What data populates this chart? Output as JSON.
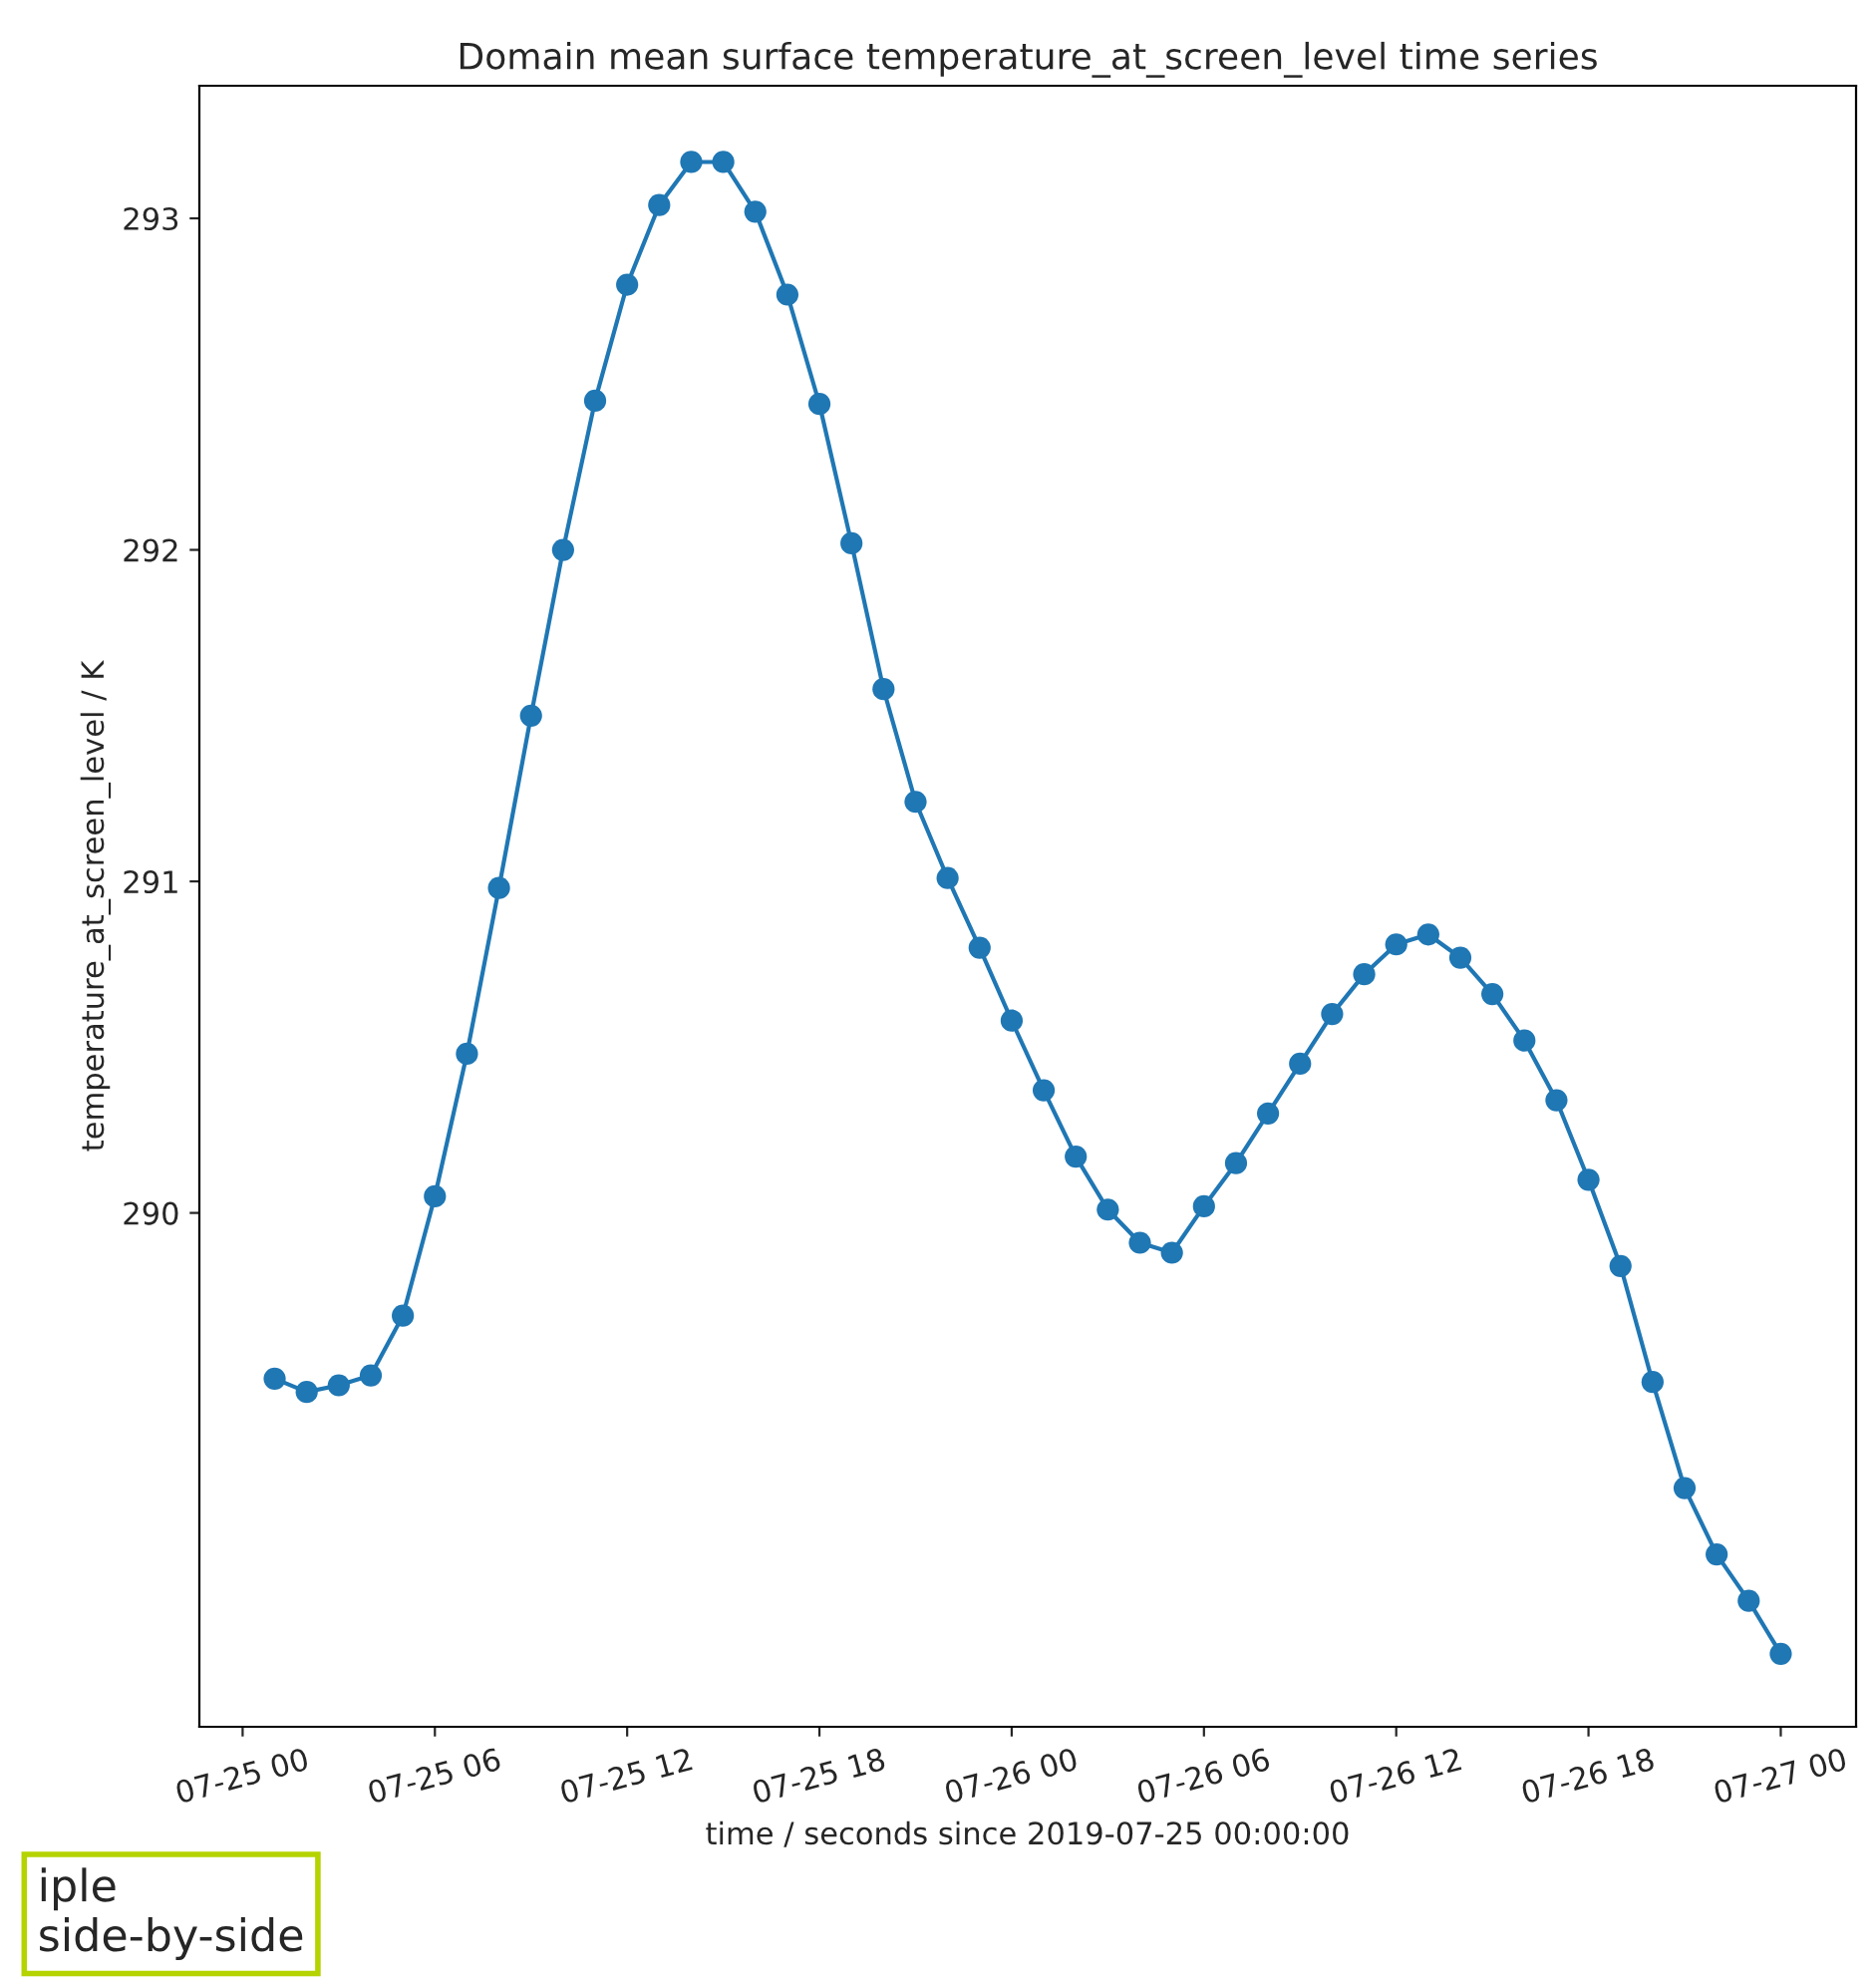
{
  "chart_data": {
    "type": "line",
    "title": "Domain mean surface temperature_at_screen_level time series",
    "xlabel": "time / seconds since 2019-07-25 00:00:00",
    "ylabel": "temperature_at_screen_level / K",
    "x": [
      "2019-07-25T01:00",
      "2019-07-25T02:00",
      "2019-07-25T03:00",
      "2019-07-25T04:00",
      "2019-07-25T05:00",
      "2019-07-25T06:00",
      "2019-07-25T07:00",
      "2019-07-25T08:00",
      "2019-07-25T09:00",
      "2019-07-25T10:00",
      "2019-07-25T11:00",
      "2019-07-25T12:00",
      "2019-07-25T13:00",
      "2019-07-25T14:00",
      "2019-07-25T15:00",
      "2019-07-25T16:00",
      "2019-07-25T17:00",
      "2019-07-25T18:00",
      "2019-07-25T19:00",
      "2019-07-25T20:00",
      "2019-07-25T21:00",
      "2019-07-25T22:00",
      "2019-07-25T23:00",
      "2019-07-26T00:00",
      "2019-07-26T01:00",
      "2019-07-26T02:00",
      "2019-07-26T03:00",
      "2019-07-26T04:00",
      "2019-07-26T05:00",
      "2019-07-26T06:00",
      "2019-07-26T07:00",
      "2019-07-26T08:00",
      "2019-07-26T09:00",
      "2019-07-26T10:00",
      "2019-07-26T11:00",
      "2019-07-26T12:00",
      "2019-07-26T13:00",
      "2019-07-26T14:00",
      "2019-07-26T15:00",
      "2019-07-26T16:00",
      "2019-07-26T17:00",
      "2019-07-26T18:00",
      "2019-07-26T19:00",
      "2019-07-26T20:00",
      "2019-07-26T21:00",
      "2019-07-26T22:00",
      "2019-07-26T23:00",
      "2019-07-27T00:00"
    ],
    "series": [
      {
        "color": "#1f77b4",
        "values": [
          289.5,
          289.46,
          289.48,
          289.51,
          289.69,
          290.05,
          290.48,
          290.98,
          291.5,
          292.0,
          292.45,
          292.8,
          293.04,
          293.17,
          293.17,
          293.02,
          292.77,
          292.44,
          292.02,
          291.58,
          291.24,
          291.01,
          290.8,
          290.58,
          290.37,
          290.17,
          290.01,
          289.91,
          289.88,
          290.02,
          290.15,
          290.3,
          290.45,
          290.6,
          290.72,
          290.81,
          290.84,
          290.77,
          290.66,
          290.52,
          290.34,
          290.1,
          289.84,
          289.49,
          289.17,
          288.97,
          288.83,
          288.67
        ]
      }
    ],
    "xlim": [
      "2019-07-24T22:39",
      "2019-07-27T02:21"
    ],
    "xticks": [
      {
        "value": "2019-07-25T00:00",
        "label": "07-25 00"
      },
      {
        "value": "2019-07-25T06:00",
        "label": "07-25 06"
      },
      {
        "value": "2019-07-25T12:00",
        "label": "07-25 12"
      },
      {
        "value": "2019-07-25T18:00",
        "label": "07-25 18"
      },
      {
        "value": "2019-07-26T00:00",
        "label": "07-26 00"
      },
      {
        "value": "2019-07-26T06:00",
        "label": "07-26 06"
      },
      {
        "value": "2019-07-26T12:00",
        "label": "07-26 12"
      },
      {
        "value": "2019-07-26T18:00",
        "label": "07-26 18"
      },
      {
        "value": "2019-07-27T00:00",
        "label": "07-27 00"
      }
    ],
    "ylim": [
      288.45,
      293.4
    ],
    "yticks": [
      290,
      291,
      292,
      293
    ],
    "marker": "circle",
    "line_style": "solid",
    "annotations": [
      "iple\nside-by-side"
    ]
  }
}
